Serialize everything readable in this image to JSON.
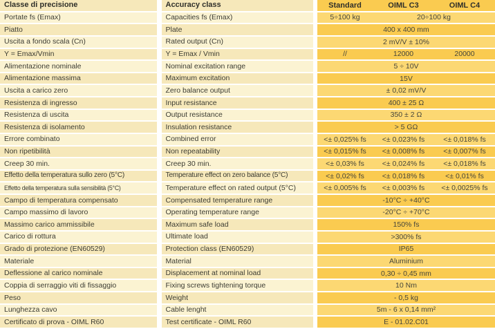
{
  "header": {
    "it": "Classe di precisione",
    "en": "Accuracy class",
    "standard": "Standard",
    "c3": "OIML C3",
    "c4": "OIML C4"
  },
  "colors": {
    "cream_dark": "#f6e8ba",
    "cream_light": "#fbf3d2",
    "gold_dark": "#facb50",
    "gold_light": "#fcd873",
    "text": "#3c3c33"
  },
  "rows": [
    {
      "it": "Portate fs (Emax)",
      "en": "Capacities fs (Emax)",
      "std": "5÷100 kg",
      "c34": "20÷100 kg"
    },
    {
      "it": "Piatto",
      "en": "Plate",
      "value": "400 x 400 mm"
    },
    {
      "it": "Uscita a fondo scala (Cn)",
      "en": "Rated output (Cn)",
      "value": "2 mV/V ± 10%"
    },
    {
      "it": "Y = Emax/Vmin",
      "en": "Y = Emax / Vmin",
      "std": "//",
      "c3": "12000",
      "c4": "20000"
    },
    {
      "it": "Alimentazione nominale",
      "en": "Nominal excitation range",
      "value": "5 ÷ 10V"
    },
    {
      "it": "Alimentazione massima",
      "en": "Maximum excitation",
      "value": "15V"
    },
    {
      "it": "Uscita a carico zero",
      "en": "Zero balance output",
      "value": "± 0,02 mV/V"
    },
    {
      "it": "Resistenza di ingresso",
      "en": "Input resistance",
      "value": "400 ± 25 Ω"
    },
    {
      "it": "Resistenza di uscita",
      "en": "Output resistance",
      "value": "350 ± 2 Ω"
    },
    {
      "it": "Resistenza di isolamento",
      "en": "Insulation resistance",
      "value": "> 5 GΩ"
    },
    {
      "it": "Errore combinato",
      "en": "Combined error",
      "std": "<± 0,025% fs",
      "c3": "<± 0,023% fs",
      "c4": "<± 0,018% fs"
    },
    {
      "it": "Non ripetibilità",
      "en": "Non repeatability",
      "std": "<± 0,015% fs",
      "c3": "<± 0,008% fs",
      "c4": "<± 0,007% fs"
    },
    {
      "it": "Creep 30 min.",
      "en": "Creep 30 min.",
      "std": "<± 0,03% fs",
      "c3": "<± 0,024% fs",
      "c4": "<± 0,018% fs"
    },
    {
      "it": "Effetto della temperatura sullo zero (5°C)",
      "en": "Temperature effect on zero balance (5°C)",
      "std": "<± 0,02% fs",
      "c3": "<± 0,018% fs",
      "c4": "<± 0,01% fs"
    },
    {
      "it": "Effetto della temperatura sulla sensibilità (5°C)",
      "en": "Temperature effect on rated output (5°C)",
      "std": "<± 0,005% fs",
      "c3": "<± 0,003% fs",
      "c4": "<± 0,0025% fs"
    },
    {
      "it": "Campo di temperatura compensato",
      "en": "Compensated temperature range",
      "value": "-10°C ÷ +40°C"
    },
    {
      "it": "Campo massimo di lavoro",
      "en": "Operating temperature range",
      "value": "-20°C ÷ +70°C"
    },
    {
      "it": "Massimo carico ammissibile",
      "en": "Maximum safe load",
      "value": "150% fs"
    },
    {
      "it": "Carico di rottura",
      "en": "Ultimate load",
      "value": ">300% fs"
    },
    {
      "it": "Grado di protezione (EN60529)",
      "en": "Protection class (EN60529)",
      "value": "IP65"
    },
    {
      "it": "Materiale",
      "en": "Material",
      "value": "Aluminium"
    },
    {
      "it": "Deflessione al carico nominale",
      "en": "Displacement at nominal load",
      "value": "0,30 ÷ 0,45 mm"
    },
    {
      "it": "Coppia di serraggio viti di fissaggio",
      "en": "Fixing screws tightening torque",
      "value": "10 Nm"
    },
    {
      "it": "Peso",
      "en": "Weight",
      "value": "- 0,5 kg"
    },
    {
      "it": "Lunghezza cavo",
      "en": "Cable lenght",
      "value": "5m - 6 x 0,14 mm²"
    },
    {
      "it": "Certificato di prova - OIML R60",
      "en": "Test certificate - OIML R60",
      "value": "E - 01.02.C01"
    }
  ]
}
